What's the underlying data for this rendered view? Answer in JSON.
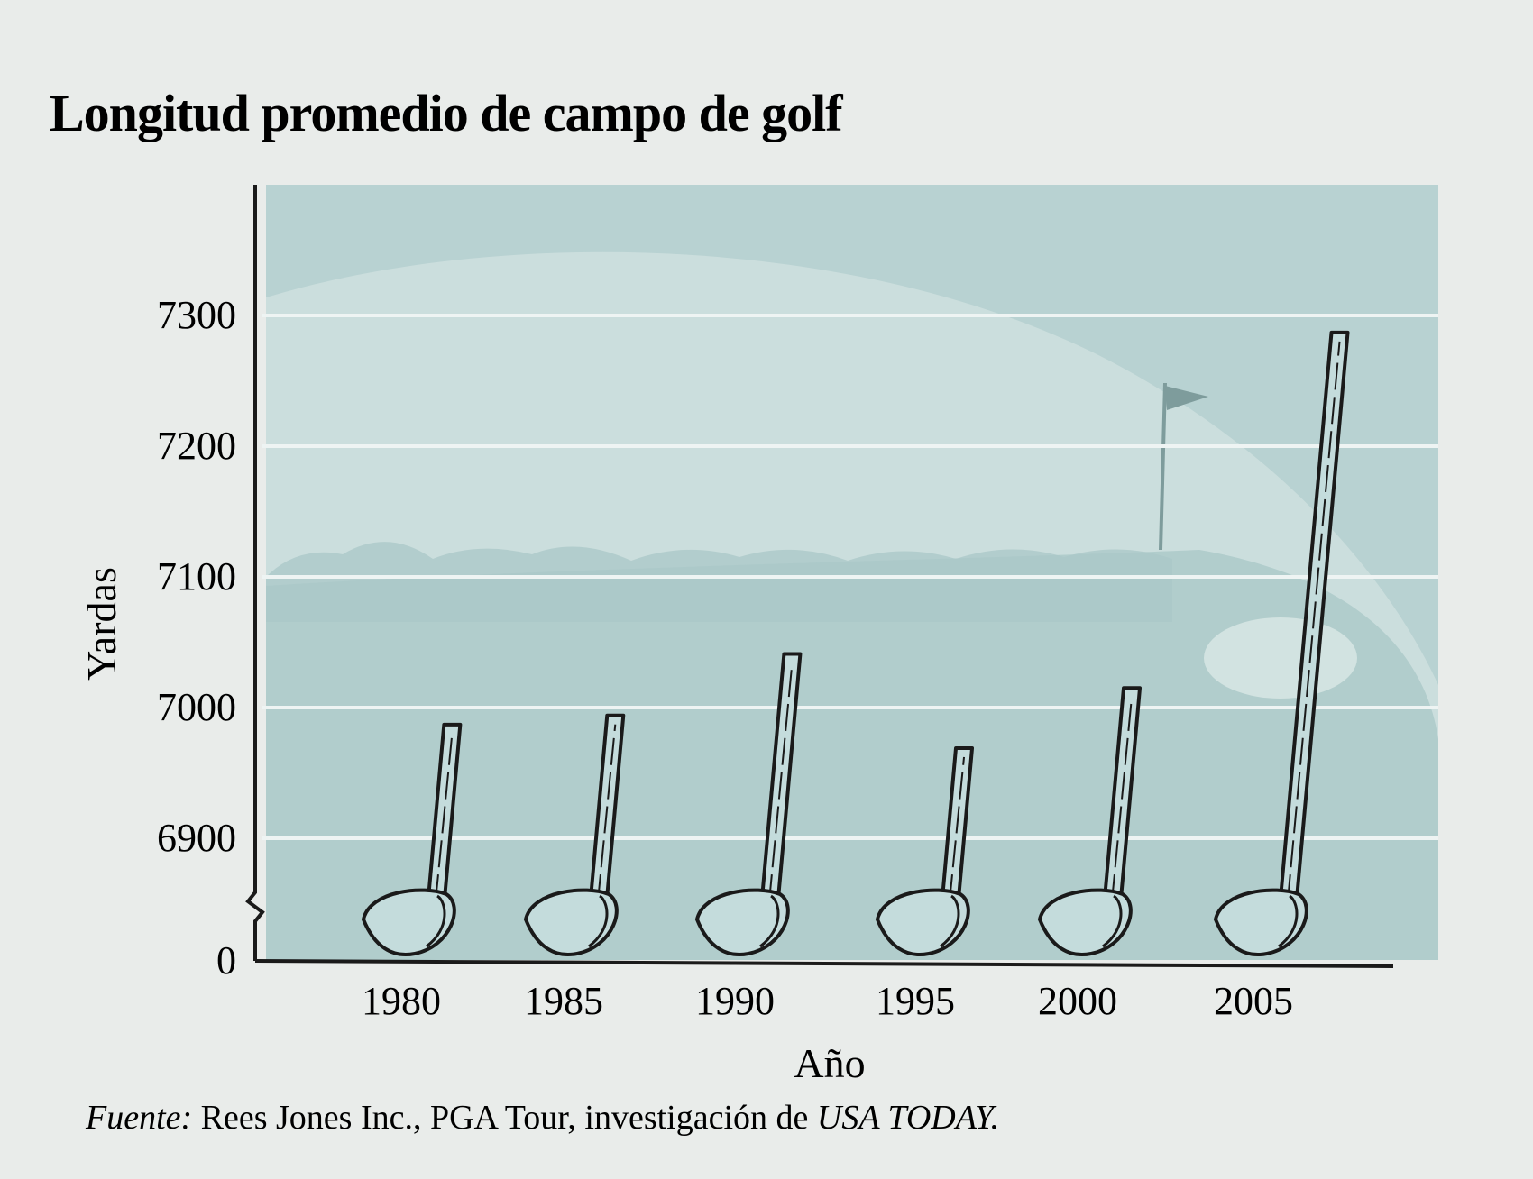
{
  "chart_data": {
    "type": "bar",
    "title": "Longitud promedio de campo de golf",
    "xlabel": "Año",
    "ylabel": "Yardas",
    "categories": [
      "1980",
      "1985",
      "1990",
      "1995",
      "2000",
      "2005"
    ],
    "values": [
      6987,
      6994,
      7041,
      6969,
      7015,
      7287
    ],
    "yticks": [
      "0",
      "6900",
      "7000",
      "7100",
      "7200",
      "7300"
    ],
    "ylim": [
      6850,
      7400
    ],
    "axis_break": true,
    "grid": true,
    "legend": "none"
  },
  "source": {
    "prefix": "Fuente:",
    "text": " Rees Jones Inc., PGA Tour, investigación de ",
    "publication": "USA TODAY."
  },
  "colors": {
    "plot_background": "#b8d2d2",
    "hills": "#d2e2e0",
    "fairway": "#aac8c8",
    "club_fill": "#c4dcdc",
    "ink": "#1a1a1a"
  }
}
